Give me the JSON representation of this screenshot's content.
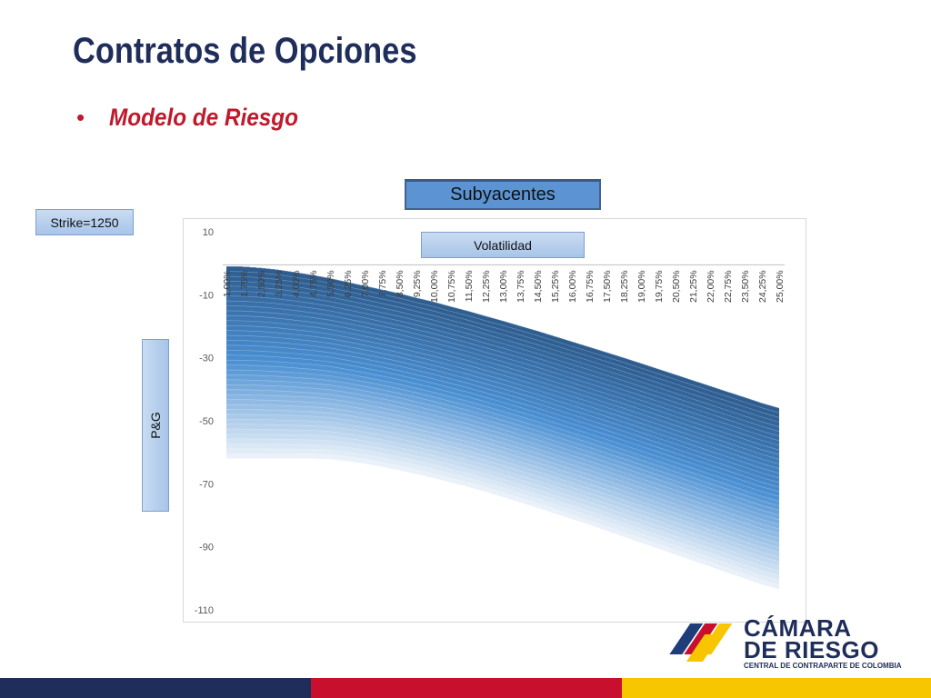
{
  "slide": {
    "title": "Contratos de Opciones",
    "bullet": "•",
    "subtitle": "Modelo de Riesgo"
  },
  "labels": {
    "strike": "Strike=1250",
    "subyacentes": "Subyacentes",
    "volatilidad": "Volatilidad",
    "pg": "P&G"
  },
  "logo": {
    "line1": "CÁMARA",
    "line2": "DE RIESGO",
    "line3": "CENTRAL DE CONTRAPARTE DE COLOMBIA"
  },
  "colors": {
    "title": "#1f2d5a",
    "subtitle": "#c0192c",
    "surface_top": "#2c5a8c",
    "surface_mid": "#4a8fd2",
    "surface_low": "#eaf1f9",
    "footer_navy": "#1f2d5a",
    "footer_red": "#c8102e",
    "footer_yellow": "#f7c600"
  },
  "chart_data": {
    "type": "area",
    "title": "",
    "xlabel": "Volatilidad",
    "ylabel": "P&G",
    "categories": [
      "1,00%",
      "1,75%",
      "2,50%",
      "3,25%",
      "4,00%",
      "4,75%",
      "5,50%",
      "6,25%",
      "7,00%",
      "7,75%",
      "8,50%",
      "9,25%",
      "10,00%",
      "10,75%",
      "11,50%",
      "12,25%",
      "13,00%",
      "13,75%",
      "14,50%",
      "15,25%",
      "16,00%",
      "16,75%",
      "17,50%",
      "18,25%",
      "19,00%",
      "19,75%",
      "20,50%",
      "21,25%",
      "22,00%",
      "22,75%",
      "23,50%",
      "24,25%",
      "25,00%"
    ],
    "ylim": [
      -110,
      10
    ],
    "yticks": [
      10,
      -10,
      -30,
      -50,
      -70,
      -90,
      -110
    ],
    "upper_envelope": [
      -1,
      -1.1,
      -1.5,
      -2.1,
      -2.9,
      -3.8,
      -4.8,
      -6,
      -7.2,
      -8.4,
      -9.6,
      -11,
      -12.3,
      -13.8,
      -15.2,
      -16.8,
      -18.3,
      -19.9,
      -21.5,
      -23.2,
      -24.9,
      -26.6,
      -28.3,
      -30,
      -31.8,
      -33.6,
      -35.4,
      -37.2,
      -39,
      -40.8,
      -42.6,
      -44.4,
      -46
    ],
    "lower_envelope": [
      -62,
      -62,
      -62,
      -62,
      -62,
      -62,
      -62.2,
      -62.8,
      -63.6,
      -64.6,
      -65.7,
      -66.9,
      -68.2,
      -69.6,
      -71,
      -72.6,
      -74.2,
      -75.9,
      -77.6,
      -79.4,
      -81.2,
      -83,
      -84.9,
      -86.8,
      -88.7,
      -90.6,
      -92.5,
      -94.4,
      -96.3,
      -98.2,
      -100.1,
      -102,
      -103.5
    ],
    "series_count": 40,
    "grid": false,
    "legend": "none"
  }
}
